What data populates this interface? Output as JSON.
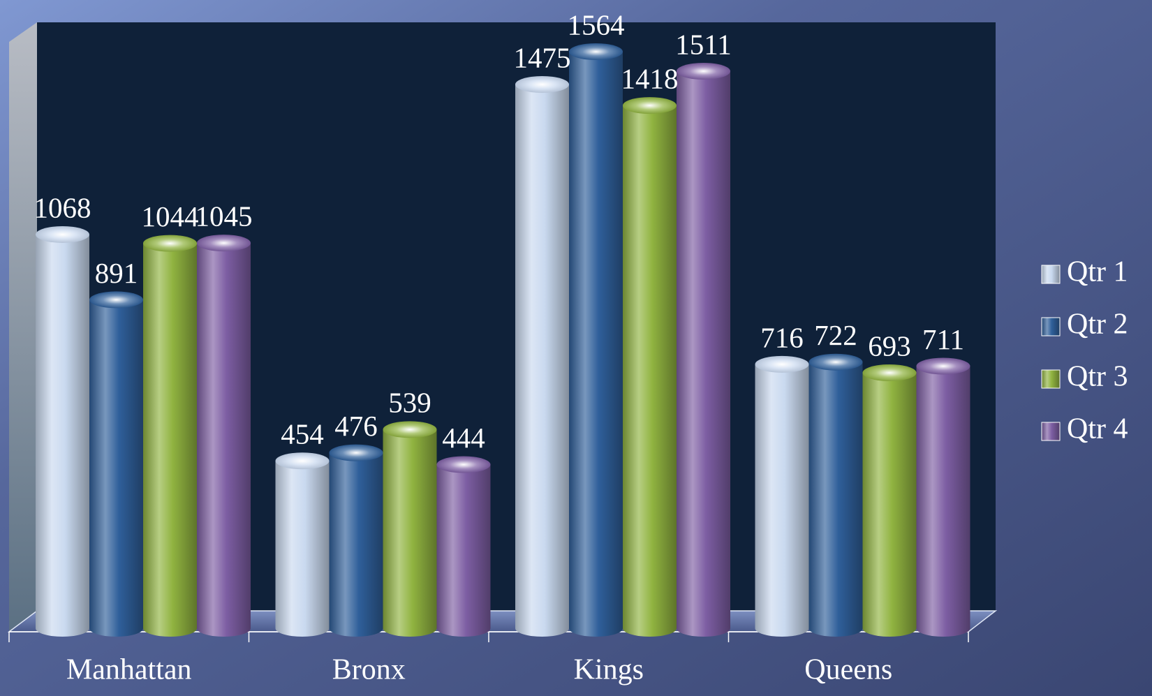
{
  "chart_data": {
    "type": "bar",
    "categories": [
      "Manhattan",
      "Bronx",
      "Kings",
      "Queens"
    ],
    "series": [
      {
        "name": "Qtr 1",
        "color": "#c9d9ef",
        "values": [
          1068,
          454,
          1475,
          716
        ]
      },
      {
        "name": "Qtr 2",
        "color": "#2f5f9a",
        "values": [
          891,
          476,
          1564,
          722
        ]
      },
      {
        "name": "Qtr 3",
        "color": "#90b340",
        "values": [
          1044,
          539,
          1418,
          693
        ]
      },
      {
        "name": "Qtr 4",
        "color": "#7d5ea3",
        "values": [
          1045,
          444,
          1511,
          711
        ]
      }
    ],
    "legend": "right"
  }
}
